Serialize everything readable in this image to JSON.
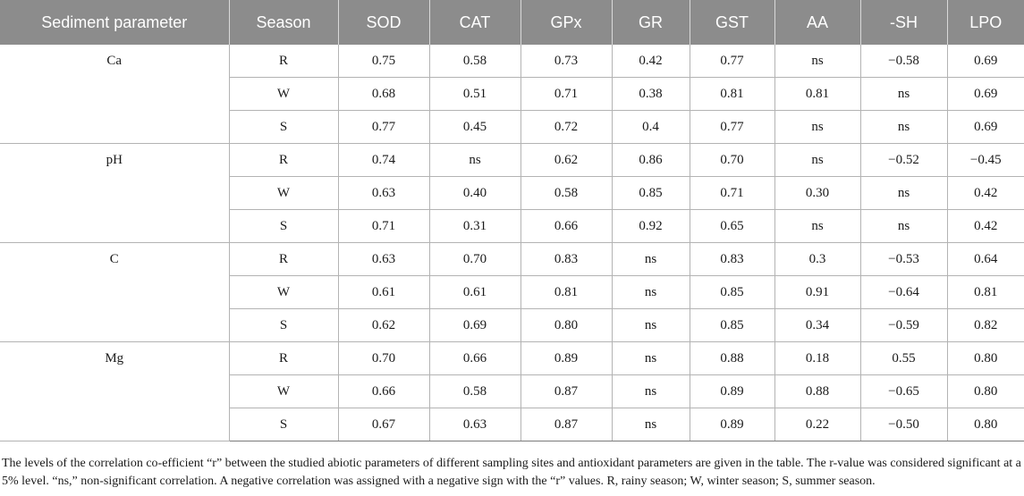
{
  "table": {
    "headers": [
      "Sediment parameter",
      "Season",
      "SOD",
      "CAT",
      "GPx",
      "GR",
      "GST",
      "AA",
      "-SH",
      "LPO"
    ],
    "groups": [
      {
        "parameter": "Ca",
        "rows": [
          [
            "R",
            "0.75",
            "0.58",
            "0.73",
            "0.42",
            "0.77",
            "ns",
            "−0.58",
            "0.69"
          ],
          [
            "W",
            "0.68",
            "0.51",
            "0.71",
            "0.38",
            "0.81",
            "0.81",
            "ns",
            "0.69"
          ],
          [
            "S",
            "0.77",
            "0.45",
            "0.72",
            "0.4",
            "0.77",
            "ns",
            "ns",
            "0.69"
          ]
        ]
      },
      {
        "parameter": "pH",
        "rows": [
          [
            "R",
            "0.74",
            "ns",
            "0.62",
            "0.86",
            "0.70",
            "ns",
            "−0.52",
            "−0.45"
          ],
          [
            "W",
            "0.63",
            "0.40",
            "0.58",
            "0.85",
            "0.71",
            "0.30",
            "ns",
            "0.42"
          ],
          [
            "S",
            "0.71",
            "0.31",
            "0.66",
            "0.92",
            "0.65",
            "ns",
            "ns",
            "0.42"
          ]
        ]
      },
      {
        "parameter": "C",
        "rows": [
          [
            "R",
            "0.63",
            "0.70",
            "0.83",
            "ns",
            "0.83",
            "0.3",
            "−0.53",
            "0.64"
          ],
          [
            "W",
            "0.61",
            "0.61",
            "0.81",
            "ns",
            "0.85",
            "0.91",
            "−0.64",
            "0.81"
          ],
          [
            "S",
            "0.62",
            "0.69",
            "0.80",
            "ns",
            "0.85",
            "0.34",
            "−0.59",
            "0.82"
          ]
        ]
      },
      {
        "parameter": "Mg",
        "rows": [
          [
            "R",
            "0.70",
            "0.66",
            "0.89",
            "ns",
            "0.88",
            "0.18",
            "0.55",
            "0.80"
          ],
          [
            "W",
            "0.66",
            "0.58",
            "0.87",
            "ns",
            "0.89",
            "0.88",
            "−0.65",
            "0.80"
          ],
          [
            "S",
            "0.67",
            "0.63",
            "0.87",
            "ns",
            "0.89",
            "0.22",
            "−0.50",
            "0.80"
          ]
        ]
      }
    ]
  },
  "footnote": "The levels of the correlation co-efficient “r” between the studied abiotic parameters of different sampling sites and antioxidant parameters are given in the table. The r-value was considered significant at a 5% level. “ns,” non-significant correlation. A negative correlation was assigned with a negative sign with the “r” values. R, rainy season; W, winter season; S, summer season."
}
